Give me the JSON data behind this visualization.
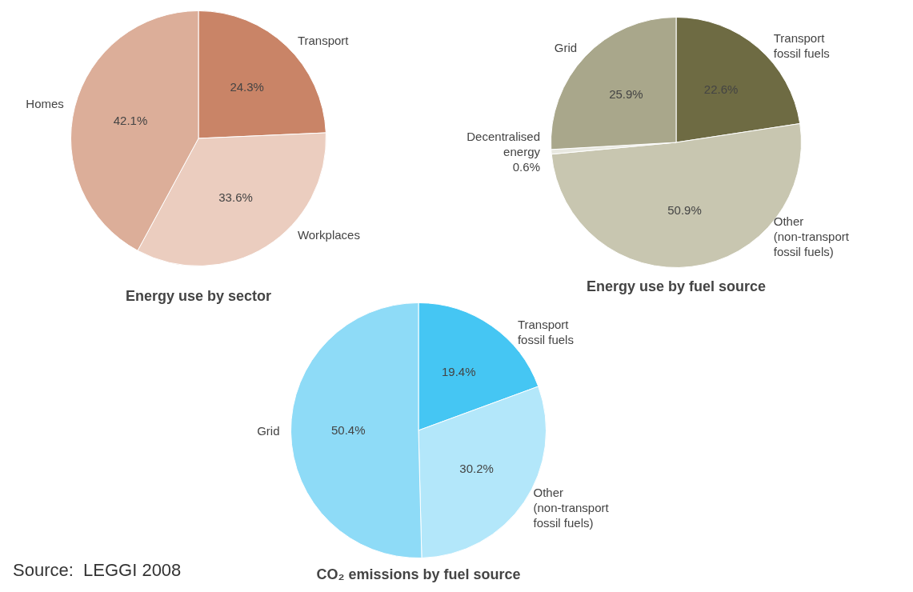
{
  "chart_data": [
    {
      "type": "pie",
      "title": "Energy use by sector",
      "categories": [
        "Transport",
        "Workplaces",
        "Homes"
      ],
      "values": [
        24.3,
        33.6,
        42.1
      ],
      "value_labels": [
        "24.3%",
        "33.6%",
        "42.1%"
      ],
      "colors": [
        "#c98467",
        "#ebcdbf",
        "#dcae99"
      ]
    },
    {
      "type": "pie",
      "title": "Energy use by fuel source",
      "categories": [
        "Transport fossil fuels",
        "Other (non-transport fossil fuels)",
        "Decentralised energy",
        "Grid"
      ],
      "values": [
        22.6,
        50.9,
        0.6,
        25.9
      ],
      "value_labels": [
        "22.6%",
        "50.9%",
        "0.6%",
        "25.9%"
      ],
      "colors": [
        "#6e6b43",
        "#c8c6b0",
        "#e8e8e0",
        "#a9a78b"
      ]
    },
    {
      "type": "pie",
      "title": "CO₂ emissions by fuel source",
      "categories": [
        "Transport fossil fuels",
        "Other (non-transport fossil fuels)",
        "Grid"
      ],
      "values": [
        19.4,
        30.2,
        50.4
      ],
      "value_labels": [
        "19.4%",
        "30.2%",
        "50.4%"
      ],
      "colors": [
        "#45c6f3",
        "#b3e7fa",
        "#8edbf7"
      ],
      "annotations": [
        "Source:  LEGGI 2008"
      ]
    }
  ]
}
